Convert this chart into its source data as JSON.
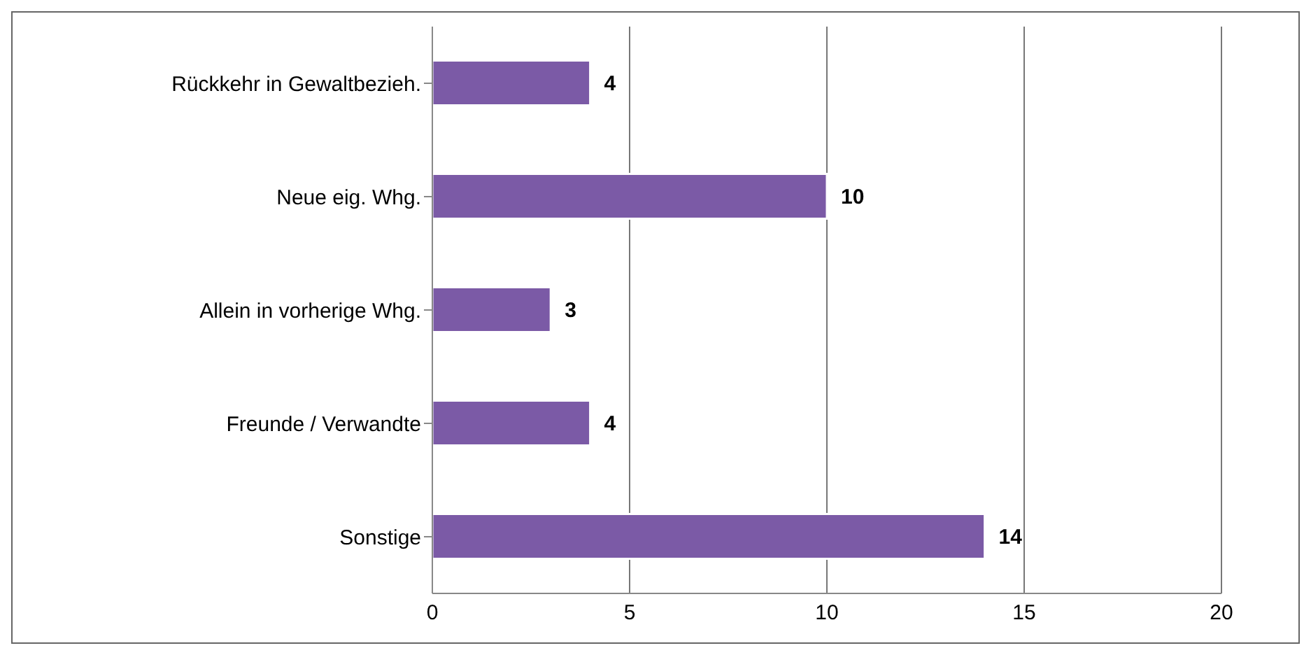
{
  "chart_data": {
    "type": "bar",
    "orientation": "horizontal",
    "categories": [
      "Rückkehr in Gewaltbezieh.",
      "Neue eig. Whg.",
      "Allein in vorherige Whg.",
      "Freunde / Verwandte",
      "Sonstige"
    ],
    "values": [
      4,
      10,
      3,
      4,
      14
    ],
    "color": "#7b5aa6",
    "xlim": [
      0,
      20
    ],
    "xticks": [
      0,
      5,
      10,
      15,
      20
    ],
    "grid": "x",
    "data_labels": true
  }
}
